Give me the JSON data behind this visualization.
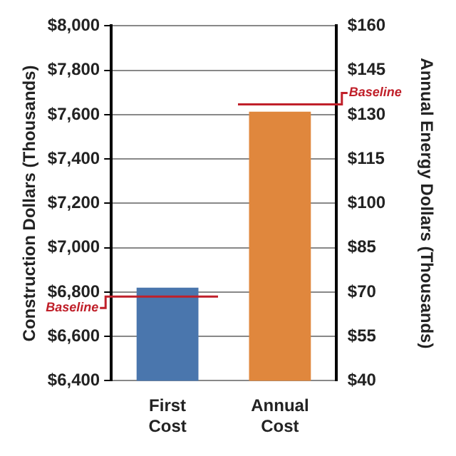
{
  "chart_data": {
    "type": "bar",
    "categories": [
      "First Cost",
      "Annual Cost"
    ],
    "ylabel": "Construction Dollars (Thousands)",
    "y2label": "Annual Energy Dollars (Thousands)",
    "series": [
      {
        "color": "#4a76ad",
        "values": [
          6820,
          null
        ],
        "axis": "y"
      },
      {
        "color": "#e0873d",
        "values": [
          null,
          131
        ],
        "axis": "y2"
      }
    ],
    "ylim": [
      6400,
      8000
    ],
    "yticks": [
      {
        "value": 6400,
        "label": "$6,400"
      },
      {
        "value": 6600,
        "label": "$6,600"
      },
      {
        "value": 6800,
        "label": "$6,800"
      },
      {
        "value": 7000,
        "label": "$7,000"
      },
      {
        "value": 7200,
        "label": "$7,200"
      },
      {
        "value": 7400,
        "label": "$7,400"
      },
      {
        "value": 7600,
        "label": "$7,600"
      },
      {
        "value": 7800,
        "label": "$7,800"
      },
      {
        "value": 8000,
        "label": "$8,000"
      }
    ],
    "y2lim": [
      40,
      160
    ],
    "y2ticks": [
      {
        "value": 40,
        "label": "$40"
      },
      {
        "value": 55,
        "label": "$55"
      },
      {
        "value": 70,
        "label": "$70"
      },
      {
        "value": 85,
        "label": "$85"
      },
      {
        "value": 100,
        "label": "$100"
      },
      {
        "value": 115,
        "label": "$115"
      },
      {
        "value": 130,
        "label": "$130"
      },
      {
        "value": 145,
        "label": "$145"
      },
      {
        "value": 160,
        "label": "$160"
      }
    ],
    "ref_lines": [
      {
        "axis": "y",
        "value": 6780,
        "label": "Baseline",
        "color": "#c0202a"
      },
      {
        "axis": "y2",
        "value": 133.5,
        "label": "Baseline",
        "color": "#c0202a"
      }
    ],
    "grid": "y",
    "legend": false
  }
}
